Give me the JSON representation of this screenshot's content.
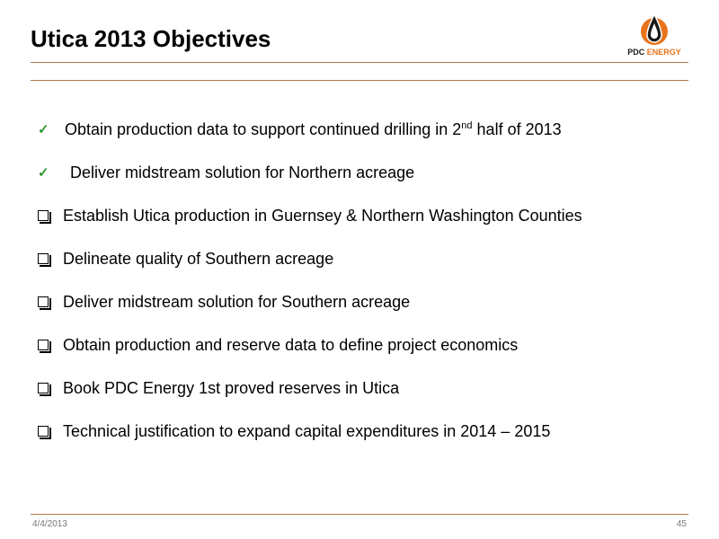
{
  "header": {
    "title": "Utica 2013 Objectives",
    "logo": {
      "text_part1": "PDC",
      "text_part2": "ENERGY",
      "icon": "oil-drop-flame-icon",
      "brand_color": "#e8731c"
    },
    "rule_color": "#b07a4a"
  },
  "objectives": [
    {
      "status": "done",
      "icon": "checkmark-icon",
      "text_before_sup": "Obtain production data to support continued drilling in 2",
      "sup": "nd",
      "text_after_sup": " half of 2013"
    },
    {
      "status": "done",
      "icon": "checkmark-icon",
      "text": "Deliver midstream solution for Northern acreage"
    },
    {
      "status": "open",
      "icon": "checkbox-icon",
      "text": "Establish Utica production in Guernsey & Northern Washington Counties"
    },
    {
      "status": "open",
      "icon": "checkbox-icon",
      "text": "Delineate quality of Southern acreage"
    },
    {
      "status": "open",
      "icon": "checkbox-icon",
      "text": "Deliver midstream solution for Southern acreage"
    },
    {
      "status": "open",
      "icon": "checkbox-icon",
      "text": "Obtain production and reserve data to define project economics"
    },
    {
      "status": "open",
      "icon": "checkbox-icon",
      "text": "Book PDC Energy 1st proved reserves in Utica"
    },
    {
      "status": "open",
      "icon": "checkbox-icon",
      "text": "Technical justification to expand capital expenditures in 2014 – 2015"
    }
  ],
  "footer": {
    "date": "4/4/2013",
    "page": "45"
  }
}
